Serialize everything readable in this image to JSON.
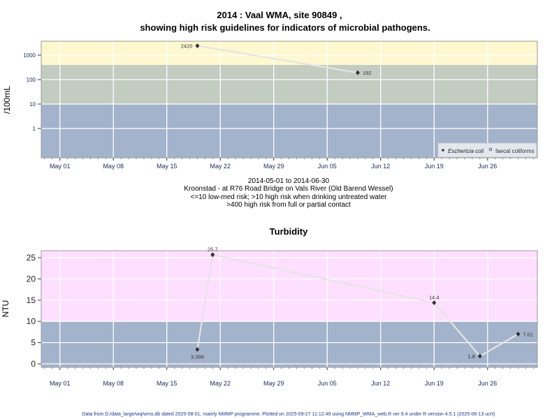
{
  "chart_data": [
    {
      "type": "line",
      "title_line1": "2014 : Vaal WMA, site 90849 ,",
      "title_line2": "showing high risk guidelines for indicators of microbial pathogens.",
      "ylabel": "/100mL",
      "yscale": "log",
      "ylim": [
        0.063,
        3700
      ],
      "yticks": [
        {
          "v": 1,
          "label": "1"
        },
        {
          "v": 10,
          "label": "10"
        },
        {
          "v": 100,
          "label": "100"
        },
        {
          "v": 1000,
          "label": "1000"
        }
      ],
      "xlim": [
        "2014-04-28.6",
        "2014-07-02.5"
      ],
      "xticks": [
        {
          "date": "2014-05-01",
          "label": "May 01"
        },
        {
          "date": "2014-05-08",
          "label": "May 08"
        },
        {
          "date": "2014-05-15",
          "label": "May 15"
        },
        {
          "date": "2014-05-22",
          "label": "May 22"
        },
        {
          "date": "2014-05-29",
          "label": "May 29"
        },
        {
          "date": "2014-06-05",
          "label": "Jun 05"
        },
        {
          "date": "2014-06-12",
          "label": "Jun 12"
        },
        {
          "date": "2014-06-19",
          "label": "Jun 19"
        },
        {
          "date": "2014-06-26",
          "label": "Jun 26"
        }
      ],
      "bands": [
        {
          "from": 0.063,
          "to": 10,
          "color": "#a2b3cb"
        },
        {
          "from": 10,
          "to": 400,
          "color": "#c2ccc0"
        },
        {
          "from": 400,
          "to": 3700,
          "color": "#fdf8d0"
        }
      ],
      "series": [
        {
          "name": "Eschericia coli",
          "marker": "filled",
          "points": [
            {
              "date": "2014-05-19",
              "value": 2420,
              "label": "2420",
              "label_pos": "left"
            },
            {
              "date": "2014-06-09",
              "value": 192,
              "label": "192",
              "label_pos": "right"
            }
          ]
        },
        {
          "name": "faecal coliforms",
          "marker": "open",
          "points": []
        }
      ],
      "legend_placement": "bottom-right",
      "subtitle_lines": [
        "2014-05-01 to 2014-06-30",
        "Kroonstad - at R76 Road Bridge on Vals River (Old Barend Wessel)",
        "<=10 low-med risk; >10 high risk when drinking untreated water",
        ">400 high risk from full or partial contact"
      ]
    },
    {
      "type": "line",
      "title": "Turbidity",
      "ylabel": "NTU",
      "ylim": [
        -0.8,
        26.6
      ],
      "yticks": [
        {
          "v": 0,
          "label": "0"
        },
        {
          "v": 5,
          "label": "5"
        },
        {
          "v": 10,
          "label": "10"
        },
        {
          "v": 15,
          "label": "15"
        },
        {
          "v": 20,
          "label": "20"
        },
        {
          "v": 25,
          "label": "25"
        }
      ],
      "bands": [
        {
          "from": -0.8,
          "to": 10,
          "color": "#a2b3cb"
        },
        {
          "from": 10,
          "to": 26.6,
          "color": "#ffdfff"
        }
      ],
      "series": [
        {
          "name": "Turbidity",
          "points": [
            {
              "date": "2014-05-19",
              "value": 3.399,
              "label": "3.399",
              "label_pos": "below"
            },
            {
              "date": "2014-05-21",
              "value": 25.7,
              "label": "25.7",
              "label_pos": "above"
            },
            {
              "date": "2014-06-19",
              "value": 14.4,
              "label": "14.4",
              "label_pos": "above"
            },
            {
              "date": "2014-06-25",
              "value": 1.8,
              "label": "1.8",
              "label_pos": "left"
            },
            {
              "date": "2014-06-30",
              "value": 7.01,
              "label": "7.01",
              "label_pos": "right"
            }
          ]
        }
      ]
    }
  ],
  "footer": "Data from D:/data_large/wq/wms.db dated 2025-08-01, mainly NMMP programme. Plotted on 2025-09-27 11:12:49 using NMMP_WMA_web.R ver 9.4 under R version 4.5.1 (2025-06-13 ucrt)"
}
